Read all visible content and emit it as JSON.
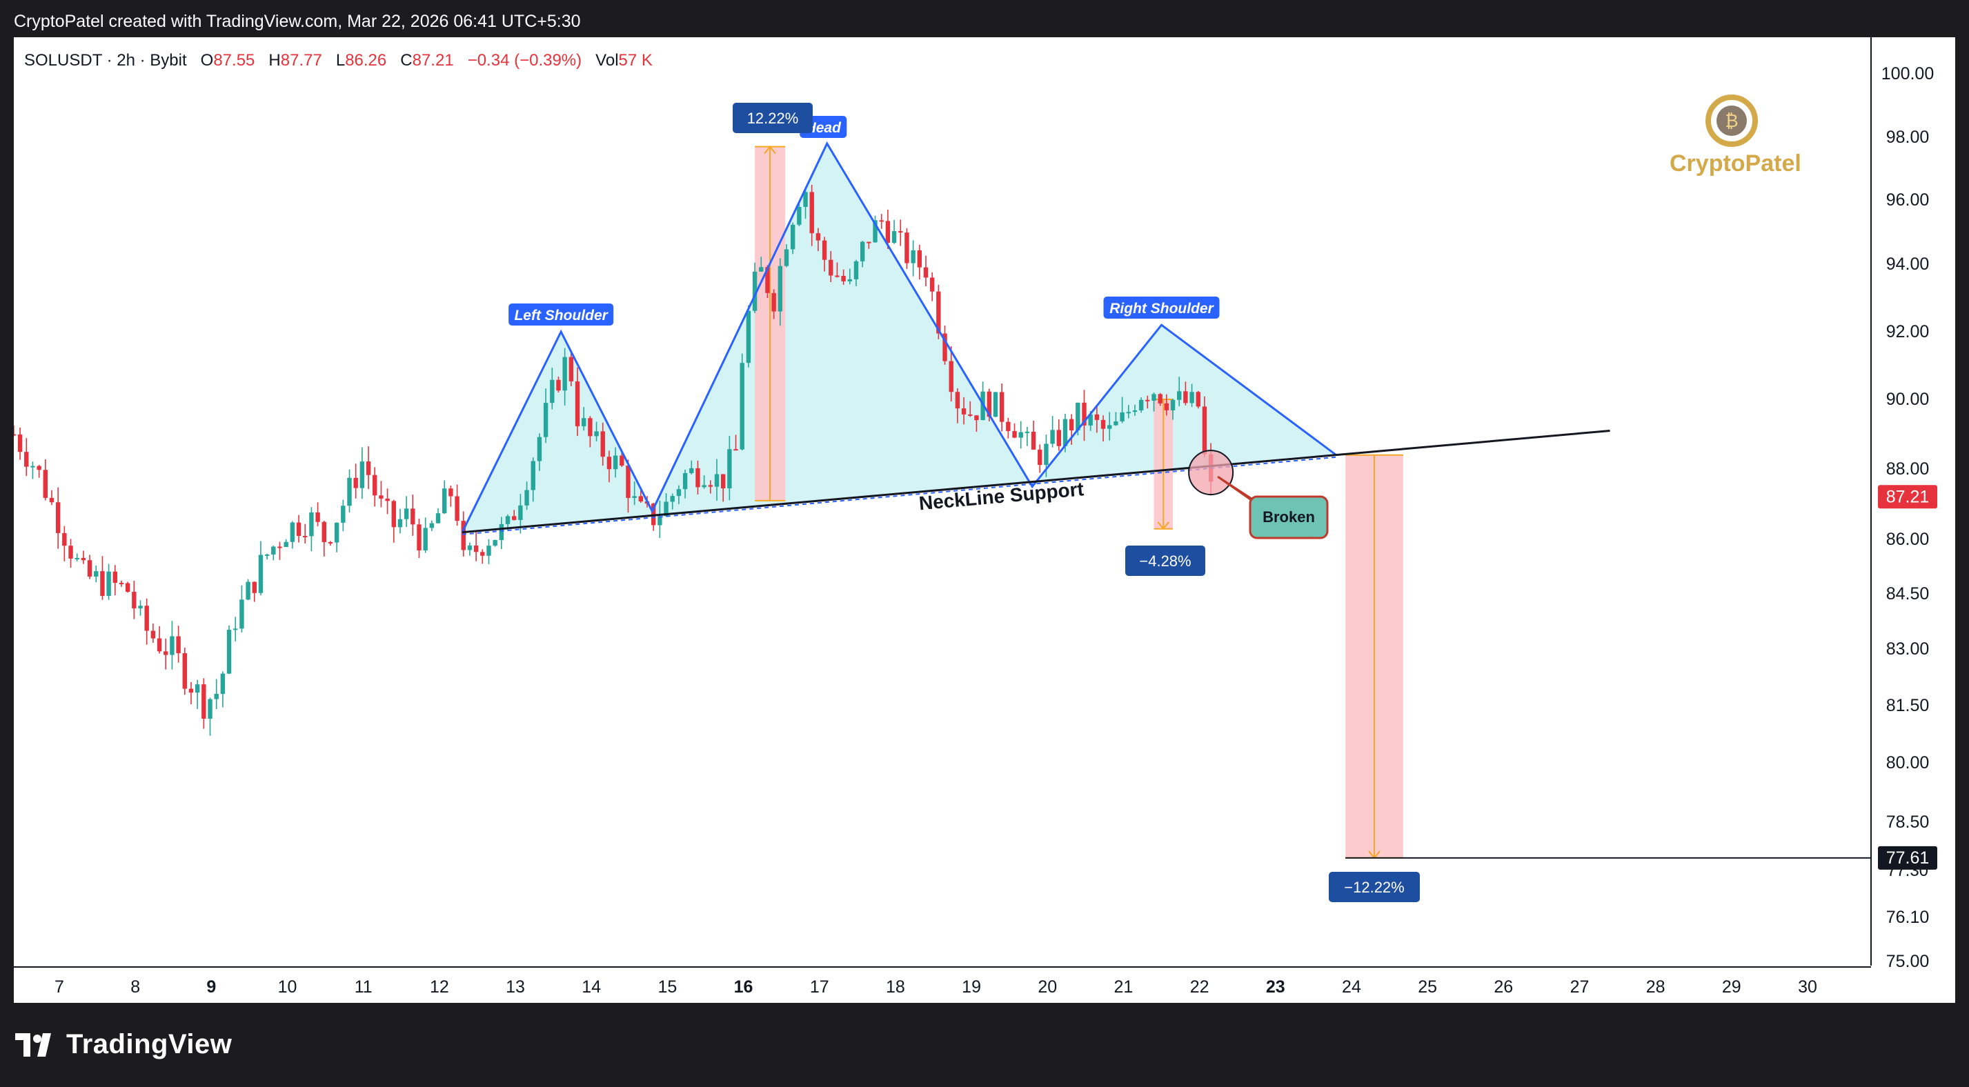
{
  "header": {
    "caption": "CryptoPatel created with TradingView.com, Mar 22, 2026 06:41 UTC+5:30"
  },
  "legend": {
    "symbol": "SOLUSDT · 2h · Bybit",
    "o_label": "O",
    "o_value": "87.55",
    "h_label": "H",
    "h_value": "87.77",
    "l_label": "L",
    "l_value": "86.26",
    "c_label": "C",
    "c_value": "87.21",
    "change": "−0.34 (−0.39%)",
    "vol_label": "Vol",
    "vol_value": "57 K"
  },
  "brand": {
    "name": "CryptoPatel"
  },
  "footer": {
    "logo_text": "TradingView"
  },
  "colors": {
    "up": "#26a69a",
    "down": "#e5323c",
    "pattern_fill": "#d4f3f5",
    "pattern_line": "#2962ff",
    "target_box": "#fbc8cc",
    "arrow": "#f5a623",
    "tag_bg": "#1e4ea0",
    "broken_bg": "#6fc3b2"
  },
  "chart_data": {
    "type": "candlestick",
    "symbol": "SOLUSDT",
    "timeframe": "2h",
    "exchange": "Bybit",
    "last_price": 87.21,
    "target_price": 77.61,
    "y_axis": [
      75.0,
      76.1,
      77.3,
      78.5,
      80.0,
      81.5,
      83.0,
      84.5,
      86.0,
      88.0,
      90.0,
      92.0,
      94.0,
      96.0,
      98.0,
      100.0
    ],
    "y_labels": [
      "75.00",
      "76.10",
      "77.30",
      "78.50",
      "80.00",
      "81.50",
      "83.00",
      "84.50",
      "86.00",
      "88.00",
      "90.00",
      "92.00",
      "94.00",
      "96.00",
      "98.00",
      "100.00"
    ],
    "x_labels": [
      {
        "day": 7,
        "label": "7",
        "bold": false
      },
      {
        "day": 8,
        "label": "8",
        "bold": false
      },
      {
        "day": 9,
        "label": "9",
        "bold": true
      },
      {
        "day": 10,
        "label": "10",
        "bold": false
      },
      {
        "day": 11,
        "label": "11",
        "bold": false
      },
      {
        "day": 12,
        "label": "12",
        "bold": false
      },
      {
        "day": 13,
        "label": "13",
        "bold": false
      },
      {
        "day": 14,
        "label": "14",
        "bold": false
      },
      {
        "day": 15,
        "label": "15",
        "bold": false
      },
      {
        "day": 16,
        "label": "16",
        "bold": true
      },
      {
        "day": 17,
        "label": "17",
        "bold": false
      },
      {
        "day": 18,
        "label": "18",
        "bold": false
      },
      {
        "day": 19,
        "label": "19",
        "bold": false
      },
      {
        "day": 20,
        "label": "20",
        "bold": false
      },
      {
        "day": 21,
        "label": "21",
        "bold": false
      },
      {
        "day": 22,
        "label": "22",
        "bold": false
      },
      {
        "day": 23,
        "label": "23",
        "bold": true
      },
      {
        "day": 24,
        "label": "24",
        "bold": false
      },
      {
        "day": 25,
        "label": "25",
        "bold": false
      },
      {
        "day": 26,
        "label": "26",
        "bold": false
      },
      {
        "day": 27,
        "label": "27",
        "bold": false
      },
      {
        "day": 28,
        "label": "28",
        "bold": false
      },
      {
        "day": 29,
        "label": "29",
        "bold": false
      },
      {
        "day": 30,
        "label": "30",
        "bold": false
      }
    ],
    "price_path": [
      [
        6.4,
        89.0
      ],
      [
        6.7,
        88.0
      ],
      [
        7.0,
        86.5
      ],
      [
        7.3,
        85.0
      ],
      [
        7.6,
        84.8
      ],
      [
        7.9,
        84.6
      ],
      [
        8.1,
        83.6
      ],
      [
        8.3,
        83.2
      ],
      [
        8.5,
        82.9
      ],
      [
        8.7,
        82.2
      ],
      [
        8.9,
        81.6
      ],
      [
        9.1,
        81.9
      ],
      [
        9.3,
        83.8
      ],
      [
        9.5,
        84.6
      ],
      [
        9.7,
        85.5
      ],
      [
        10.0,
        86.3
      ],
      [
        10.3,
        86.6
      ],
      [
        10.5,
        86.0
      ],
      [
        10.8,
        87.3
      ],
      [
        11.0,
        88.3
      ],
      [
        11.2,
        87.0
      ],
      [
        11.4,
        86.4
      ],
      [
        11.6,
        86.7
      ],
      [
        11.8,
        85.8
      ],
      [
        12.0,
        86.8
      ],
      [
        12.2,
        87.5
      ],
      [
        12.3,
        85.3
      ],
      [
        12.6,
        86.0
      ],
      [
        12.9,
        86.3
      ],
      [
        13.1,
        87.5
      ],
      [
        13.3,
        88.8
      ],
      [
        13.5,
        90.3
      ],
      [
        13.7,
        91.3
      ],
      [
        13.8,
        89.6
      ],
      [
        14.0,
        88.8
      ],
      [
        14.2,
        88.4
      ],
      [
        14.4,
        88.0
      ],
      [
        14.6,
        86.8
      ],
      [
        14.8,
        86.6
      ],
      [
        15.0,
        87.0
      ],
      [
        15.2,
        87.8
      ],
      [
        15.5,
        88.0
      ],
      [
        15.7,
        87.6
      ],
      [
        15.9,
        88.5
      ],
      [
        16.0,
        91.8
      ],
      [
        16.2,
        93.9
      ],
      [
        16.4,
        93.0
      ],
      [
        16.6,
        95.2
      ],
      [
        16.8,
        96.6
      ],
      [
        16.9,
        95.0
      ],
      [
        17.1,
        94.0
      ],
      [
        17.4,
        93.3
      ],
      [
        17.6,
        94.7
      ],
      [
        17.8,
        95.4
      ],
      [
        18.0,
        94.8
      ],
      [
        18.2,
        94.1
      ],
      [
        18.4,
        93.9
      ],
      [
        18.6,
        92.0
      ],
      [
        18.8,
        90.0
      ],
      [
        19.0,
        89.6
      ],
      [
        19.2,
        90.0
      ],
      [
        19.4,
        89.6
      ],
      [
        19.6,
        89.2
      ],
      [
        19.8,
        88.4
      ],
      [
        20.0,
        88.5
      ],
      [
        20.2,
        89.1
      ],
      [
        20.4,
        89.5
      ],
      [
        20.6,
        89.3
      ],
      [
        20.8,
        89.0
      ],
      [
        21.0,
        89.4
      ],
      [
        21.2,
        90.2
      ],
      [
        21.4,
        90.3
      ],
      [
        21.6,
        90.0
      ],
      [
        21.8,
        89.9
      ],
      [
        22.0,
        89.8
      ],
      [
        22.1,
        87.55
      ],
      [
        22.2,
        87.21
      ]
    ],
    "pattern": {
      "name": "Head and Shoulders",
      "labels": {
        "left": "Left Shoulder",
        "head": "Head",
        "right": "Right Shoulder"
      },
      "points": [
        [
          12.3,
          86.2
        ],
        [
          13.6,
          92.0
        ],
        [
          14.8,
          86.8
        ],
        [
          17.1,
          97.8
        ],
        [
          19.8,
          87.5
        ],
        [
          21.5,
          92.2
        ],
        [
          23.8,
          88.4
        ]
      ]
    },
    "neckline": {
      "label": "NeckLine Support",
      "from": [
        12.3,
        86.2
      ],
      "to": [
        27.4,
        89.1
      ]
    },
    "annotations": {
      "head_gain": "12.22%",
      "pullback": "−4.28%",
      "target_drop": "−12.22%",
      "broken": "Broken"
    },
    "measurements": [
      {
        "label": "12.22%",
        "x_from": 16.15,
        "x_to": 16.55,
        "y_from": 87.1,
        "y_to": 97.7,
        "direction": "up"
      },
      {
        "label": "−4.28%",
        "x_from": 21.4,
        "x_to": 21.65,
        "y_from": 90.0,
        "y_to": 86.3,
        "direction": "down"
      },
      {
        "label": "−12.22%",
        "x_from": 23.92,
        "x_to": 24.68,
        "y_from": 88.4,
        "y_to": 77.61,
        "direction": "down"
      }
    ],
    "break_point": [
      22.15,
      87.9
    ]
  }
}
